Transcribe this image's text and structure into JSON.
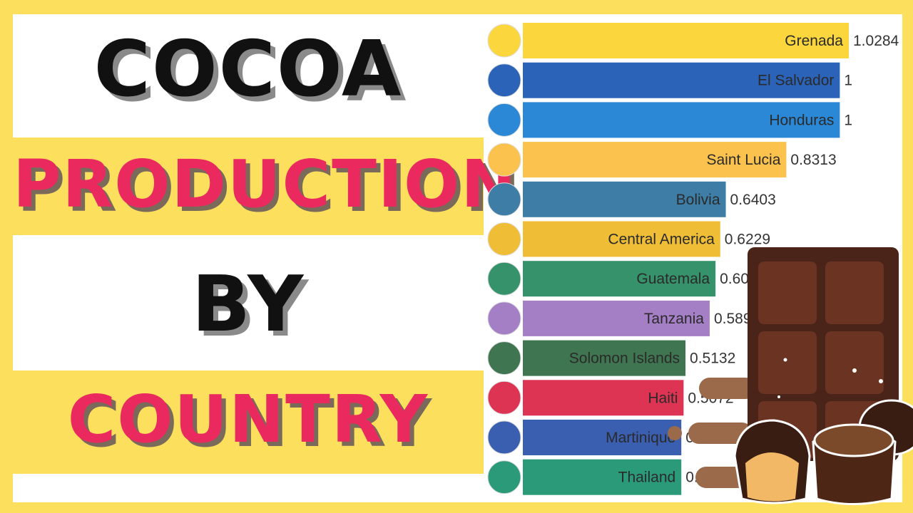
{
  "title": {
    "line1": "COCOA",
    "line2": "PRODUCTION",
    "line3": "BY",
    "line4": "COUNTRY"
  },
  "colors": {
    "background_yellow": "#fddf5e",
    "title_pink": "#ea2a5f",
    "title_black": "#111111"
  },
  "chart_data": {
    "type": "bar",
    "orientation": "horizontal",
    "categories": [
      "Grenada",
      "El Salvador",
      "Honduras",
      "Saint Lucia",
      "Bolivia",
      "Central America",
      "Guatemala",
      "Tanzania",
      "Solomon Islands",
      "Haiti",
      "Martinique",
      "Thailand"
    ],
    "values": [
      1.0284,
      1,
      1,
      0.8313,
      0.6403,
      0.6229,
      0.6079,
      0.5895,
      0.5132,
      0.5072,
      0.5,
      0.5
    ],
    "value_labels": [
      "1.0284",
      "1",
      "1",
      "0.8313",
      "0.6403",
      "0.6229",
      "0.6079",
      "0.5895",
      "0.5132",
      "0.5072",
      "0.5",
      "0.5"
    ],
    "bar_colors": [
      "#fbd63c",
      "#2a63b8",
      "#2a88d6",
      "#fbc34e",
      "#3e7da6",
      "#f0bd36",
      "#35926b",
      "#a57fc6",
      "#3f7550",
      "#de3453",
      "#3b5fb0",
      "#2b9a78"
    ],
    "flag_icons": [
      "grenada-flag",
      "el-salvador-flag",
      "honduras-flag",
      "saint-lucia-flag",
      "bolivia-flag",
      "central-america-flag",
      "guatemala-flag",
      "tanzania-flag",
      "solomon-islands-flag",
      "haiti-flag",
      "martinique-flag",
      "thailand-flag"
    ],
    "xlim": [
      0,
      1.0284
    ],
    "grid": false,
    "legend": "none"
  }
}
